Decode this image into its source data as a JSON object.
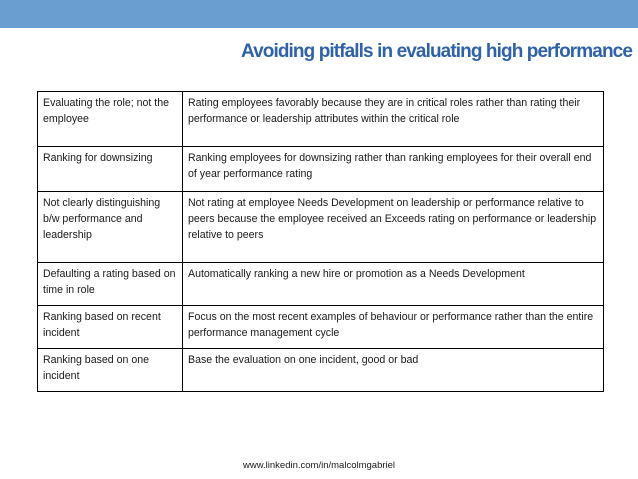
{
  "slide": {
    "title": "Avoiding pitfalls in evaluating high performance",
    "footer": "www.linkedin.com/in/malcolmgabriel",
    "colors": {
      "top_band": "#6a9ed1",
      "title": "#2f62a8"
    }
  },
  "table": {
    "rows": [
      {
        "pitfall": "Evaluating the role; not the employee",
        "description": "Rating employees favorably because they are in critical roles rather than rating their performance or leadership attributes within the critical role"
      },
      {
        "pitfall": "Ranking for downsizing",
        "description": "Ranking employees for downsizing rather than ranking employees for their overall end of year performance rating"
      },
      {
        "pitfall": "Not clearly distinguishing b/w performance and leadership",
        "description": "Not rating at employee Needs Development on leadership or performance relative to peers because the employee received an Exceeds rating on performance or leadership relative to peers"
      },
      {
        "pitfall": "Defaulting a rating based on time in role",
        "description": "Automatically ranking a new hire or promotion as a Needs Development"
      },
      {
        "pitfall": "Ranking based on recent incident",
        "description": "Focus on the most recent examples of behaviour or performance rather than the entire performance management cycle"
      },
      {
        "pitfall": "Ranking based on one incident",
        "description": "Base the evaluation on one incident, good or bad"
      }
    ]
  }
}
